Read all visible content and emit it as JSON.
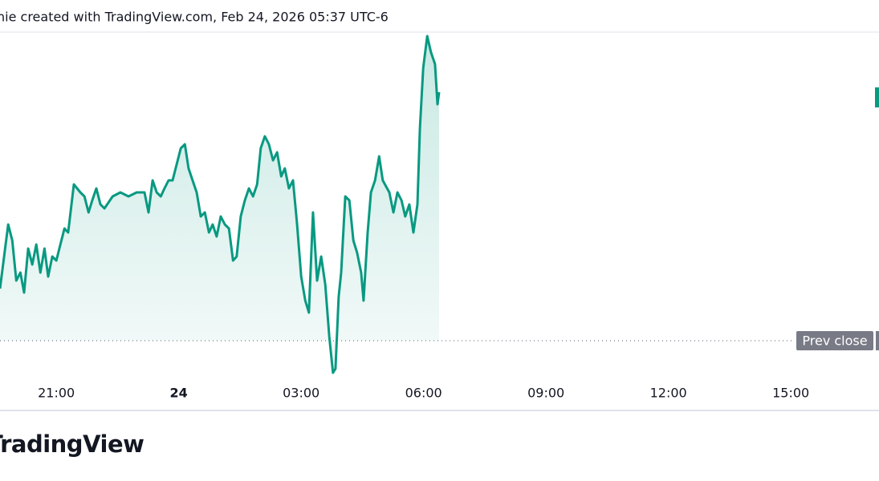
{
  "header": {
    "caption": "nie created with TradingView.com, Feb 24, 2026 05:37 UTC-6"
  },
  "footer": {
    "logo": "TradingView"
  },
  "chart_data": {
    "type": "area",
    "x": [
      19.62,
      19.72,
      19.82,
      19.92,
      20.02,
      20.12,
      20.21,
      20.31,
      20.41,
      20.51,
      20.61,
      20.71,
      20.8,
      20.9,
      21.0,
      21.1,
      21.2,
      21.29,
      21.43,
      21.59,
      21.69,
      21.79,
      21.88,
      21.98,
      22.08,
      22.18,
      22.38,
      22.57,
      22.77,
      22.97,
      23.16,
      23.26,
      23.36,
      23.46,
      23.56,
      23.65,
      23.75,
      23.85,
      23.95,
      24.05,
      24.15,
      24.24,
      24.34,
      24.44,
      24.54,
      24.64,
      24.74,
      24.83,
      24.93,
      25.03,
      25.13,
      25.23,
      25.33,
      25.42,
      25.52,
      25.62,
      25.72,
      25.82,
      25.92,
      26.01,
      26.11,
      26.21,
      26.31,
      26.41,
      26.51,
      26.6,
      26.7,
      26.8,
      26.9,
      27.0,
      27.1,
      27.19,
      27.29,
      27.39,
      27.49,
      27.59,
      27.69,
      27.78,
      27.84,
      27.92,
      27.98,
      28.08,
      28.18,
      28.28,
      28.37,
      28.47,
      28.53,
      28.63,
      28.71,
      28.81,
      28.91,
      29.0,
      29.16,
      29.26,
      29.36,
      29.46,
      29.55,
      29.65,
      29.75,
      29.85,
      29.91,
      29.99,
      30.09,
      30.18,
      30.28,
      30.34,
      30.38
    ],
    "series": [
      {
        "color": "#089981",
        "values": [
          105,
          145,
          185,
          165,
          115,
          125,
          100,
          155,
          135,
          160,
          125,
          155,
          120,
          145,
          140,
          160,
          180,
          175,
          235,
          225,
          220,
          200,
          215,
          230,
          210,
          205,
          220,
          225,
          220,
          225,
          225,
          200,
          240,
          225,
          220,
          230,
          240,
          240,
          260,
          280,
          285,
          255,
          240,
          225,
          195,
          200,
          175,
          185,
          170,
          195,
          185,
          180,
          140,
          145,
          195,
          215,
          230,
          220,
          235,
          280,
          295,
          285,
          265,
          275,
          245,
          255,
          230,
          240,
          185,
          120,
          90,
          75,
          200,
          115,
          145,
          110,
          45,
          0,
          5,
          95,
          125,
          220,
          215,
          165,
          150,
          125,
          90,
          175,
          225,
          240,
          270,
          240,
          225,
          200,
          225,
          215,
          195,
          210,
          175,
          210,
          305,
          380,
          420,
          400,
          385,
          335,
          350
        ]
      }
    ],
    "prev_close": {
      "label": "Prev close",
      "value": 40
    },
    "xlim": [
      19.62,
      41.16
    ],
    "ylim": [
      -45,
      425
    ],
    "xticks": [
      {
        "value": 21,
        "label": "21:00"
      },
      24,
      {
        "value": 27,
        "label": "03:00"
      },
      {
        "value": 30,
        "label": "06:00"
      },
      {
        "value": 33,
        "label": "09:00"
      },
      {
        "value": 36,
        "label": "12:00"
      },
      {
        "value": 39,
        "label": "15:00"
      }
    ]
  }
}
